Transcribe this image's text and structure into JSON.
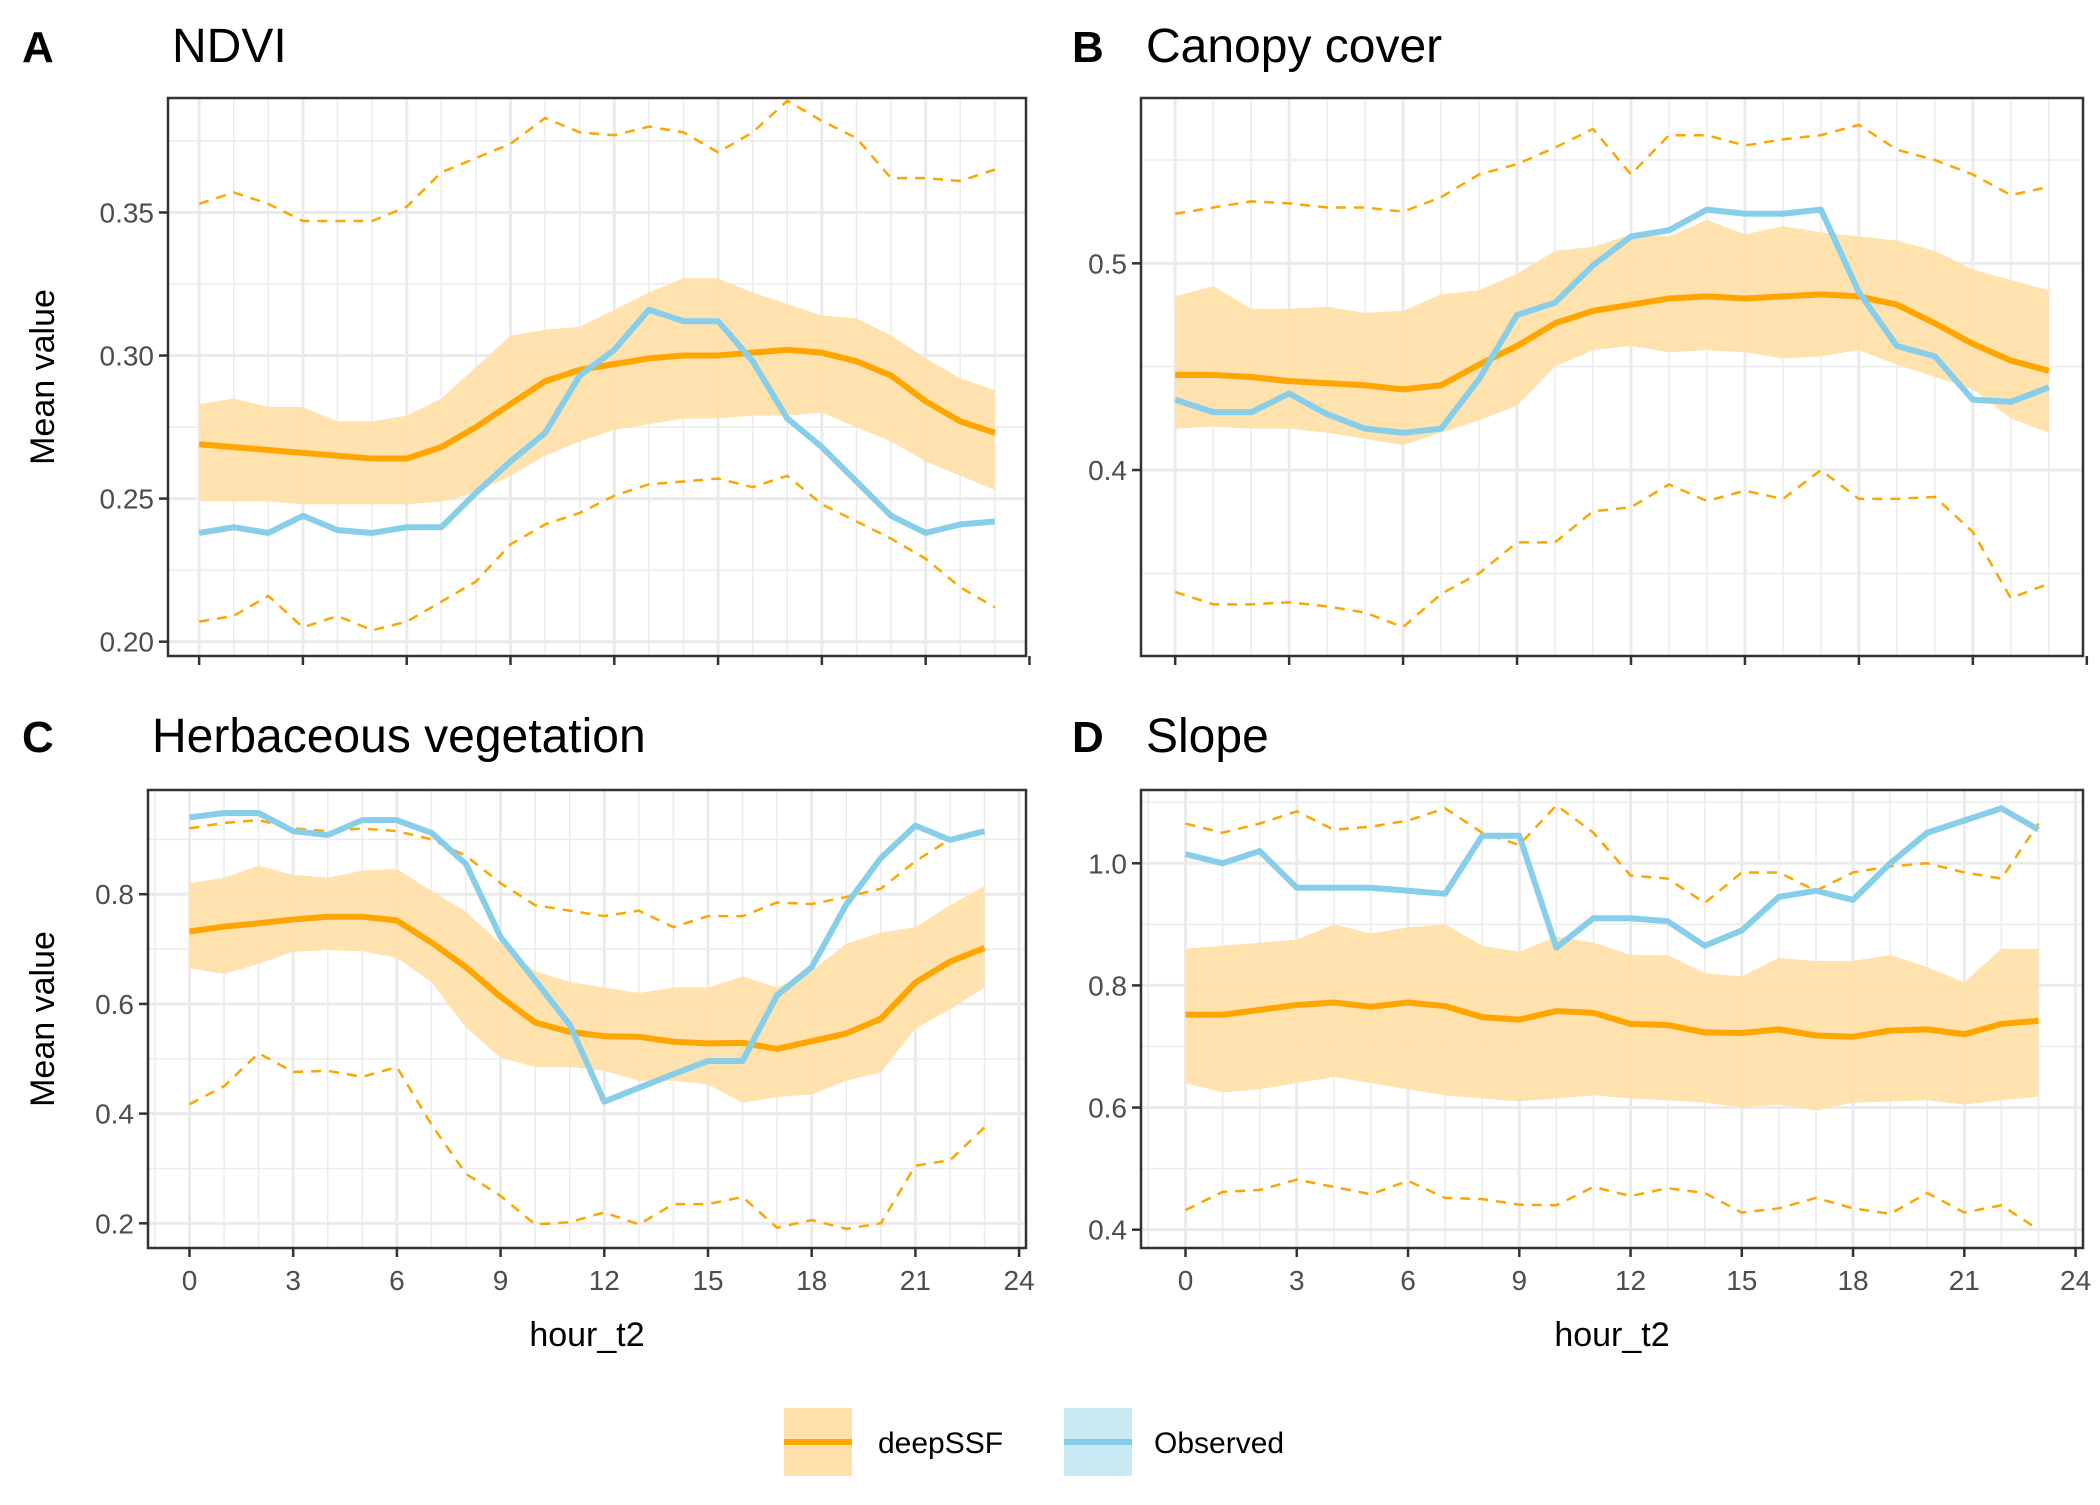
{
  "legend": {
    "items": [
      {
        "label": "deepSSF",
        "color": "#FFA500",
        "fill": "#FFE0AA"
      },
      {
        "label": "Observed",
        "color": "#87CEEB",
        "fill": "#C9EBF6"
      }
    ]
  },
  "style": {
    "grid_color": "#EBEBEB",
    "panel_border": "#333333",
    "tick_label_color": "#4D4D4D"
  },
  "chart_data": [
    {
      "letter": "A",
      "title": "NDVI",
      "type": "line",
      "xlabel": "",
      "ylabel": "Mean value",
      "xlim": [
        -0.9,
        23.9
      ],
      "ylim": [
        0.195,
        0.39
      ],
      "xticks": [
        0,
        3,
        6,
        9,
        12,
        15,
        18,
        21,
        24
      ],
      "xtick_labels": [],
      "yticks": [
        0.2,
        0.25,
        0.3,
        0.35
      ],
      "ytick_labels": [
        "0.20",
        "0.25",
        "0.30",
        "0.35"
      ],
      "grid": true,
      "x": [
        0,
        1,
        2,
        3,
        4,
        5,
        6,
        7,
        8,
        9,
        10,
        11,
        12,
        13,
        14,
        15,
        16,
        17,
        18,
        19,
        20,
        21,
        22,
        23
      ],
      "deepSSF_mean": [
        0.269,
        0.268,
        0.267,
        0.266,
        0.265,
        0.264,
        0.264,
        0.268,
        0.275,
        0.283,
        0.291,
        0.295,
        0.297,
        0.299,
        0.3,
        0.3,
        0.301,
        0.302,
        0.301,
        0.298,
        0.293,
        0.284,
        0.277,
        0.273
      ],
      "deepSSF_lower": [
        0.249,
        0.249,
        0.249,
        0.248,
        0.248,
        0.248,
        0.248,
        0.249,
        0.252,
        0.258,
        0.265,
        0.27,
        0.274,
        0.276,
        0.278,
        0.278,
        0.279,
        0.279,
        0.28,
        0.275,
        0.27,
        0.263,
        0.258,
        0.253
      ],
      "deepSSF_upper": [
        0.283,
        0.285,
        0.282,
        0.282,
        0.277,
        0.277,
        0.279,
        0.285,
        0.296,
        0.307,
        0.309,
        0.31,
        0.316,
        0.322,
        0.327,
        0.327,
        0.322,
        0.318,
        0.314,
        0.313,
        0.307,
        0.299,
        0.292,
        0.288
      ],
      "observed": [
        0.238,
        0.24,
        0.238,
        0.244,
        0.239,
        0.238,
        0.24,
        0.24,
        0.252,
        0.263,
        0.273,
        0.293,
        0.302,
        0.316,
        0.312,
        0.312,
        0.298,
        0.278,
        0.268,
        0.256,
        0.244,
        0.238,
        0.241,
        0.242
      ],
      "deepSSF_min": [
        0.207,
        0.209,
        0.216,
        0.205,
        0.209,
        0.204,
        0.207,
        0.214,
        0.221,
        0.234,
        0.241,
        0.245,
        0.251,
        0.255,
        0.256,
        0.257,
        0.254,
        0.258,
        0.248,
        0.242,
        0.236,
        0.229,
        0.219,
        0.212
      ],
      "deepSSF_max": [
        0.353,
        0.357,
        0.353,
        0.347,
        0.347,
        0.347,
        0.352,
        0.364,
        0.369,
        0.374,
        0.383,
        0.378,
        0.377,
        0.38,
        0.378,
        0.371,
        0.378,
        0.389,
        0.382,
        0.376,
        0.362,
        0.362,
        0.361,
        0.365
      ]
    },
    {
      "letter": "B",
      "title": "Canopy cover",
      "type": "line",
      "xlabel": "",
      "ylabel": "",
      "xlim": [
        -0.9,
        23.9
      ],
      "ylim": [
        0.31,
        0.58
      ],
      "xticks": [
        0,
        3,
        6,
        9,
        12,
        15,
        18,
        21,
        24
      ],
      "xtick_labels": [],
      "yticks": [
        0.4,
        0.5
      ],
      "ytick_labels": [
        "0.4",
        "0.5"
      ],
      "grid": true,
      "x": [
        0,
        1,
        2,
        3,
        4,
        5,
        6,
        7,
        8,
        9,
        10,
        11,
        12,
        13,
        14,
        15,
        16,
        17,
        18,
        19,
        20,
        21,
        22,
        23
      ],
      "deepSSF_mean": [
        0.446,
        0.446,
        0.445,
        0.443,
        0.442,
        0.441,
        0.439,
        0.441,
        0.451,
        0.46,
        0.471,
        0.477,
        0.48,
        0.483,
        0.484,
        0.483,
        0.484,
        0.485,
        0.484,
        0.48,
        0.471,
        0.461,
        0.453,
        0.448
      ],
      "deepSSF_lower": [
        0.42,
        0.421,
        0.42,
        0.42,
        0.418,
        0.415,
        0.412,
        0.418,
        0.424,
        0.431,
        0.45,
        0.458,
        0.46,
        0.457,
        0.458,
        0.457,
        0.454,
        0.455,
        0.458,
        0.451,
        0.445,
        0.439,
        0.425,
        0.418
      ],
      "deepSSF_upper": [
        0.484,
        0.489,
        0.478,
        0.478,
        0.479,
        0.476,
        0.477,
        0.485,
        0.487,
        0.495,
        0.506,
        0.508,
        0.514,
        0.513,
        0.521,
        0.514,
        0.518,
        0.515,
        0.513,
        0.511,
        0.506,
        0.497,
        0.492,
        0.487
      ],
      "observed": [
        0.434,
        0.428,
        0.428,
        0.437,
        0.427,
        0.42,
        0.418,
        0.42,
        0.444,
        0.475,
        0.481,
        0.499,
        0.513,
        0.516,
        0.526,
        0.524,
        0.524,
        0.526,
        0.486,
        0.46,
        0.455,
        0.434,
        0.433,
        0.44
      ],
      "deepSSF_min": [
        0.341,
        0.335,
        0.335,
        0.336,
        0.334,
        0.331,
        0.324,
        0.34,
        0.35,
        0.365,
        0.365,
        0.38,
        0.382,
        0.393,
        0.385,
        0.39,
        0.386,
        0.4,
        0.386,
        0.386,
        0.387,
        0.37,
        0.338,
        0.345
      ],
      "deepSSF_max": [
        0.524,
        0.527,
        0.53,
        0.529,
        0.527,
        0.527,
        0.525,
        0.532,
        0.543,
        0.548,
        0.556,
        0.565,
        0.543,
        0.562,
        0.562,
        0.557,
        0.56,
        0.562,
        0.567,
        0.555,
        0.55,
        0.543,
        0.533,
        0.537
      ]
    },
    {
      "letter": "C",
      "title": "Herbaceous vegetation",
      "type": "line",
      "xlabel": "hour_t2",
      "ylabel": "Mean value",
      "xlim": [
        -1.2,
        24.2
      ],
      "ylim": [
        0.155,
        0.99
      ],
      "xticks": [
        0,
        3,
        6,
        9,
        12,
        15,
        18,
        21,
        24
      ],
      "xtick_labels": [
        "0",
        "3",
        "6",
        "9",
        "12",
        "15",
        "18",
        "21",
        "24"
      ],
      "yticks": [
        0.2,
        0.4,
        0.6,
        0.8
      ],
      "ytick_labels": [
        "0.2",
        "0.4",
        "0.6",
        "0.8"
      ],
      "grid": true,
      "x": [
        0,
        1,
        2,
        3,
        4,
        5,
        6,
        7,
        8,
        9,
        10,
        11,
        12,
        13,
        14,
        15,
        16,
        17,
        18,
        19,
        20,
        21,
        22,
        23
      ],
      "deepSSF_mean": [
        0.732,
        0.741,
        0.747,
        0.754,
        0.759,
        0.759,
        0.752,
        0.712,
        0.667,
        0.613,
        0.566,
        0.549,
        0.541,
        0.54,
        0.531,
        0.528,
        0.529,
        0.518,
        0.532,
        0.546,
        0.573,
        0.639,
        0.677,
        0.702
      ],
      "deepSSF_lower": [
        0.665,
        0.655,
        0.673,
        0.695,
        0.698,
        0.696,
        0.684,
        0.64,
        0.557,
        0.502,
        0.485,
        0.485,
        0.478,
        0.46,
        0.46,
        0.453,
        0.42,
        0.43,
        0.435,
        0.46,
        0.475,
        0.555,
        0.59,
        0.63
      ],
      "deepSSF_upper": [
        0.82,
        0.83,
        0.852,
        0.835,
        0.83,
        0.843,
        0.846,
        0.806,
        0.768,
        0.71,
        0.66,
        0.64,
        0.63,
        0.62,
        0.63,
        0.63,
        0.65,
        0.63,
        0.66,
        0.71,
        0.73,
        0.74,
        0.78,
        0.815
      ],
      "observed": [
        0.94,
        0.948,
        0.948,
        0.915,
        0.908,
        0.935,
        0.935,
        0.912,
        0.855,
        0.722,
        0.643,
        0.562,
        0.422,
        0.447,
        0.472,
        0.496,
        0.496,
        0.616,
        0.667,
        0.781,
        0.866,
        0.925,
        0.899,
        0.915
      ],
      "deepSSF_min": [
        0.417,
        0.45,
        0.51,
        0.476,
        0.478,
        0.467,
        0.485,
        0.38,
        0.29,
        0.25,
        0.198,
        0.202,
        0.22,
        0.198,
        0.235,
        0.235,
        0.248,
        0.192,
        0.206,
        0.19,
        0.2,
        0.305,
        0.315,
        0.375
      ],
      "deepSSF_max": [
        0.92,
        0.93,
        0.935,
        0.92,
        0.915,
        0.92,
        0.915,
        0.9,
        0.87,
        0.82,
        0.78,
        0.77,
        0.76,
        0.77,
        0.74,
        0.76,
        0.76,
        0.785,
        0.782,
        0.795,
        0.81,
        0.86,
        0.9,
        0.915
      ]
    },
    {
      "letter": "D",
      "title": "Slope",
      "type": "line",
      "xlabel": "hour_t2",
      "ylabel": "",
      "xlim": [
        -1.2,
        24.2
      ],
      "ylim": [
        0.37,
        1.12
      ],
      "xticks": [
        0,
        3,
        6,
        9,
        12,
        15,
        18,
        21,
        24
      ],
      "xtick_labels": [
        "0",
        "3",
        "6",
        "9",
        "12",
        "15",
        "18",
        "21",
        "24"
      ],
      "yticks": [
        0.4,
        0.6,
        0.8,
        1.0
      ],
      "ytick_labels": [
        "0.4",
        "0.6",
        "0.8",
        "1.0"
      ],
      "grid": true,
      "x": [
        0,
        1,
        2,
        3,
        4,
        5,
        6,
        7,
        8,
        9,
        10,
        11,
        12,
        13,
        14,
        15,
        16,
        17,
        18,
        19,
        20,
        21,
        22,
        23
      ],
      "deepSSF_mean": [
        0.752,
        0.752,
        0.76,
        0.768,
        0.772,
        0.765,
        0.772,
        0.766,
        0.748,
        0.744,
        0.758,
        0.755,
        0.737,
        0.735,
        0.723,
        0.722,
        0.728,
        0.718,
        0.716,
        0.726,
        0.728,
        0.72,
        0.737,
        0.742
      ],
      "deepSSF_lower": [
        0.64,
        0.625,
        0.63,
        0.64,
        0.65,
        0.64,
        0.63,
        0.62,
        0.615,
        0.61,
        0.615,
        0.62,
        0.615,
        0.612,
        0.608,
        0.6,
        0.605,
        0.595,
        0.608,
        0.61,
        0.612,
        0.605,
        0.612,
        0.618
      ],
      "deepSSF_upper": [
        0.86,
        0.865,
        0.87,
        0.875,
        0.9,
        0.885,
        0.895,
        0.9,
        0.865,
        0.855,
        0.88,
        0.87,
        0.85,
        0.85,
        0.82,
        0.815,
        0.845,
        0.84,
        0.84,
        0.85,
        0.83,
        0.805,
        0.86,
        0.86
      ],
      "observed": [
        1.015,
        1.0,
        1.02,
        0.96,
        0.96,
        0.96,
        0.955,
        0.95,
        1.045,
        1.045,
        0.862,
        0.91,
        0.91,
        0.905,
        0.865,
        0.89,
        0.945,
        0.955,
        0.94,
        1.0,
        1.05,
        1.07,
        1.09,
        1.055
      ],
      "deepSSF_min": [
        0.432,
        0.462,
        0.465,
        0.482,
        0.47,
        0.458,
        0.48,
        0.452,
        0.45,
        0.441,
        0.44,
        0.47,
        0.455,
        0.468,
        0.46,
        0.428,
        0.435,
        0.452,
        0.435,
        0.426,
        0.46,
        0.428,
        0.44,
        0.4
      ],
      "deepSSF_max": [
        1.065,
        1.05,
        1.065,
        1.085,
        1.055,
        1.06,
        1.07,
        1.09,
        1.05,
        1.03,
        1.095,
        1.05,
        0.98,
        0.975,
        0.935,
        0.985,
        0.985,
        0.955,
        0.985,
        0.995,
        1.0,
        0.985,
        0.975,
        1.065
      ]
    }
  ]
}
